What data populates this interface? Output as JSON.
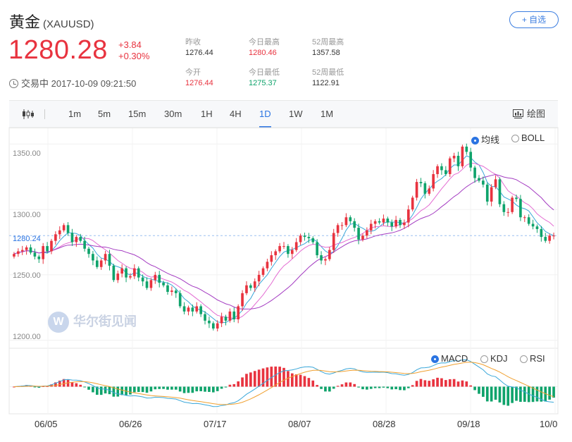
{
  "header": {
    "name": "黄金",
    "symbol": "(XAUUSD)",
    "add_favorite": "+ 自选",
    "price": "1280.28",
    "change": "+3.84",
    "change_pct": "+0.30%",
    "status_time": "交易中 2017-10-09 09:21:50"
  },
  "stats": {
    "prev_close": {
      "label": "昨收",
      "value": "1276.44"
    },
    "open": {
      "label": "今开",
      "value": "1276.44"
    },
    "high": {
      "label": "今日最高",
      "value": "1280.46"
    },
    "low": {
      "label": "今日最低",
      "value": "1275.37"
    },
    "high52": {
      "label": "52周最高",
      "value": "1357.58"
    },
    "low52": {
      "label": "52周最低",
      "value": "1122.91"
    }
  },
  "tabs": [
    "1m",
    "5m",
    "15m",
    "30m",
    "1H",
    "4H",
    "1D",
    "1W",
    "1M"
  ],
  "active_tab": "1D",
  "draw_label": "绘图",
  "overlay_options": {
    "ma": "均线",
    "boll": "BOLL"
  },
  "indicator_options": {
    "macd": "MACD",
    "kdj": "KDJ",
    "rsi": "RSI"
  },
  "watermark": "华尔街见闻",
  "colors": {
    "up": "#e8333f",
    "down": "#0fa36b",
    "accent": "#2b74e2"
  },
  "chart_data": {
    "type": "candlestick",
    "y_ticks": [
      "1350.00",
      "1300.00",
      "1250.00",
      "1200.00"
    ],
    "last_price_label": "1280.24",
    "ylim": [
      1195,
      1362
    ],
    "x_ticks": [
      "06/05",
      "06/26",
      "07/17",
      "08/07",
      "08/28",
      "09/18",
      "10/0"
    ],
    "close": [
      1266,
      1268,
      1269,
      1271,
      1267,
      1264,
      1262,
      1272,
      1268,
      1276,
      1281,
      1284,
      1288,
      1282,
      1275,
      1279,
      1276,
      1270,
      1266,
      1261,
      1256,
      1261,
      1266,
      1257,
      1246,
      1251,
      1255,
      1248,
      1249,
      1255,
      1248,
      1245,
      1240,
      1246,
      1250,
      1244,
      1242,
      1237,
      1238,
      1236,
      1226,
      1222,
      1225,
      1222,
      1226,
      1220,
      1215,
      1213,
      1209,
      1213,
      1218,
      1215,
      1222,
      1216,
      1226,
      1236,
      1242,
      1240,
      1245,
      1250,
      1255,
      1260,
      1265,
      1268,
      1272,
      1272,
      1266,
      1269,
      1275,
      1280,
      1279,
      1278,
      1275,
      1265,
      1261,
      1262,
      1269,
      1282,
      1288,
      1288,
      1294,
      1291,
      1286,
      1277,
      1280,
      1284,
      1289,
      1291,
      1290,
      1293,
      1290,
      1287,
      1292,
      1288,
      1290,
      1300,
      1309,
      1321,
      1320,
      1312,
      1316,
      1327,
      1333,
      1330,
      1327,
      1339,
      1341,
      1333,
      1348,
      1344,
      1332,
      1324,
      1322,
      1319,
      1306,
      1317,
      1323,
      1304,
      1298,
      1298,
      1309,
      1308,
      1294,
      1294,
      1289,
      1287,
      1285,
      1279,
      1276,
      1280,
      1280
    ],
    "ma_series": [
      "MA fast",
      "MA mid",
      "MA slow"
    ],
    "macd_series": [
      "DIF",
      "DEA",
      "MACD histogram"
    ]
  }
}
